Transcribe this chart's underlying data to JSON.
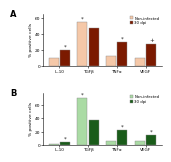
{
  "panel_A": {
    "categories": [
      "IL-10",
      "TGFβ",
      "TNFα",
      "VEGF"
    ],
    "non_infected": [
      10,
      55,
      13,
      10
    ],
    "infected": [
      20,
      47,
      30,
      28
    ],
    "color_ni": "#F5C8A8",
    "color_inf": "#7B1A00",
    "ylabel": "% positive cells",
    "ylim": [
      0,
      65
    ],
    "yticks": [
      0,
      20,
      40,
      60
    ],
    "legend_ni": "Non-infected",
    "legend_inf": "30 dpi",
    "markers": [
      [
        "*",
        false,
        true
      ],
      [
        "*",
        true,
        false
      ],
      [
        "*",
        false,
        true
      ],
      [
        "+",
        false,
        true
      ]
    ]
  },
  "panel_B": {
    "categories": [
      "IL-10",
      "TGFβ",
      "TNFα",
      "VEGF"
    ],
    "non_infected": [
      2,
      70,
      7,
      7
    ],
    "infected": [
      5,
      38,
      22,
      15
    ],
    "color_ni": "#AADBA4",
    "color_inf": "#1A5C1A",
    "ylabel": "% positive cells",
    "ylim": [
      0,
      78
    ],
    "yticks": [
      0,
      20,
      40,
      60
    ],
    "legend_ni": "Non-infected",
    "legend_inf": "30 dpi",
    "markers": [
      [
        "*",
        false,
        true
      ],
      [
        "*",
        true,
        false
      ],
      [
        "*",
        false,
        true
      ],
      [
        "*",
        false,
        true
      ]
    ]
  },
  "panel_label_A": "A",
  "panel_label_B": "B",
  "background_color": "#ffffff"
}
